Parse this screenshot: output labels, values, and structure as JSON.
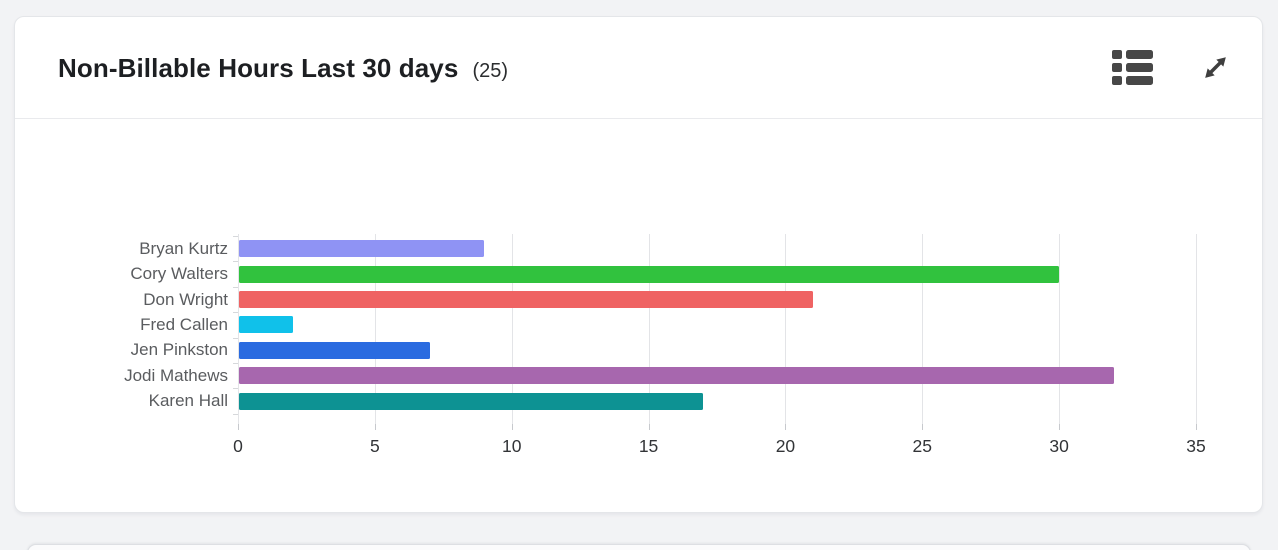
{
  "page": {
    "background": "#f2f3f5"
  },
  "card": {
    "title": "Non-Billable Hours Last 30 days",
    "count": "(25)",
    "icons": [
      {
        "name": "list-view-icon"
      },
      {
        "name": "expand-icon"
      }
    ]
  },
  "chart_data": {
    "type": "bar",
    "orientation": "horizontal",
    "title": "Non-Billable Hours Last 30 days",
    "xlabel": "",
    "ylabel": "",
    "categories": [
      "Bryan Kurtz",
      "Cory Walters",
      "Don Wright",
      "Fred Callen",
      "Jen Pinkston",
      "Jodi Mathews",
      "Karen Hall"
    ],
    "values": [
      9,
      30,
      21,
      2,
      7,
      32,
      17
    ],
    "colors": [
      "#8f93f4",
      "#31c23e",
      "#ef6363",
      "#10c1ea",
      "#2a6be0",
      "#a767ae",
      "#0d9293"
    ],
    "xlim": [
      0,
      35
    ],
    "xticks": [
      0,
      5,
      10,
      15,
      20,
      25,
      30,
      35
    ],
    "grid": "vertical",
    "legend": "none"
  }
}
